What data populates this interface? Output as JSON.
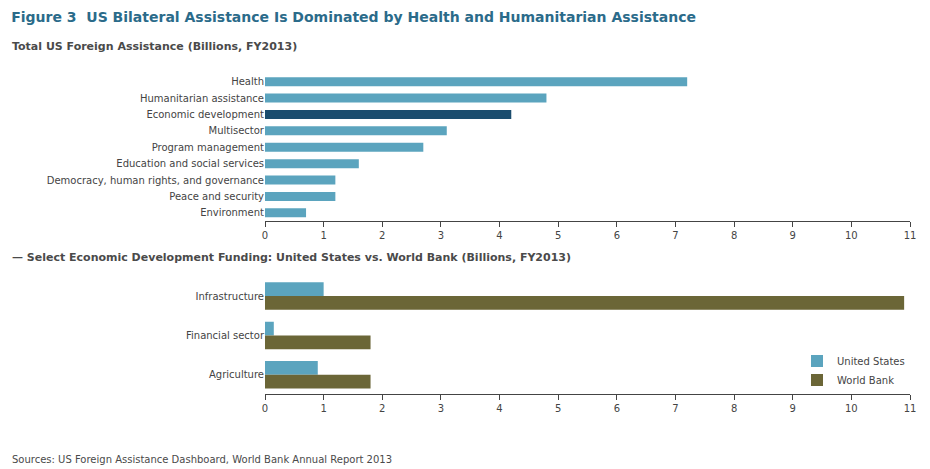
{
  "chart_data": [
    {
      "type": "bar",
      "orientation": "horizontal",
      "title": "Figure 3  US Bilateral Assistance Is Dominated by Health and Humanitarian Assistance",
      "subtitle": "Total US Foreign Assistance (Billions, FY2013)",
      "categories": [
        "Health",
        "Humanitarian assistance",
        "Economic development",
        "Multisector",
        "Program management",
        "Education and social services",
        "Democracy, human rights, and governance",
        "Peace and security",
        "Environment"
      ],
      "values": [
        7.2,
        4.8,
        4.2,
        3.1,
        2.7,
        1.6,
        1.2,
        1.2,
        0.7
      ],
      "colors": [
        "#5ba4be",
        "#5ba4be",
        "#1b4d6e",
        "#5ba4be",
        "#5ba4be",
        "#5ba4be",
        "#5ba4be",
        "#5ba4be",
        "#5ba4be"
      ],
      "xlim": [
        0,
        11
      ],
      "xticks": [
        0,
        1,
        2,
        3,
        4,
        5,
        6,
        7,
        8,
        9,
        10,
        11
      ],
      "grid": false
    },
    {
      "type": "bar",
      "orientation": "horizontal",
      "subtitle": "— Select Economic Development Funding: United States vs. World Bank (Billions, FY2013)",
      "categories": [
        "Infrastructure",
        "Financial sector",
        "Agriculture"
      ],
      "series": [
        {
          "name": "United States",
          "color": "#5ba4be",
          "values": [
            1.0,
            0.15,
            0.9
          ]
        },
        {
          "name": "World Bank",
          "color": "#6b6637",
          "values": [
            10.9,
            1.8,
            1.8
          ]
        }
      ],
      "xlim": [
        0,
        11
      ],
      "xticks": [
        0,
        1,
        2,
        3,
        4,
        5,
        6,
        7,
        8,
        9,
        10,
        11
      ],
      "grid": false,
      "legend": "lower right",
      "annotations": [
        "Sources: US Foreign Assistance Dashboard, World Bank Annual Report 2013"
      ]
    }
  ]
}
